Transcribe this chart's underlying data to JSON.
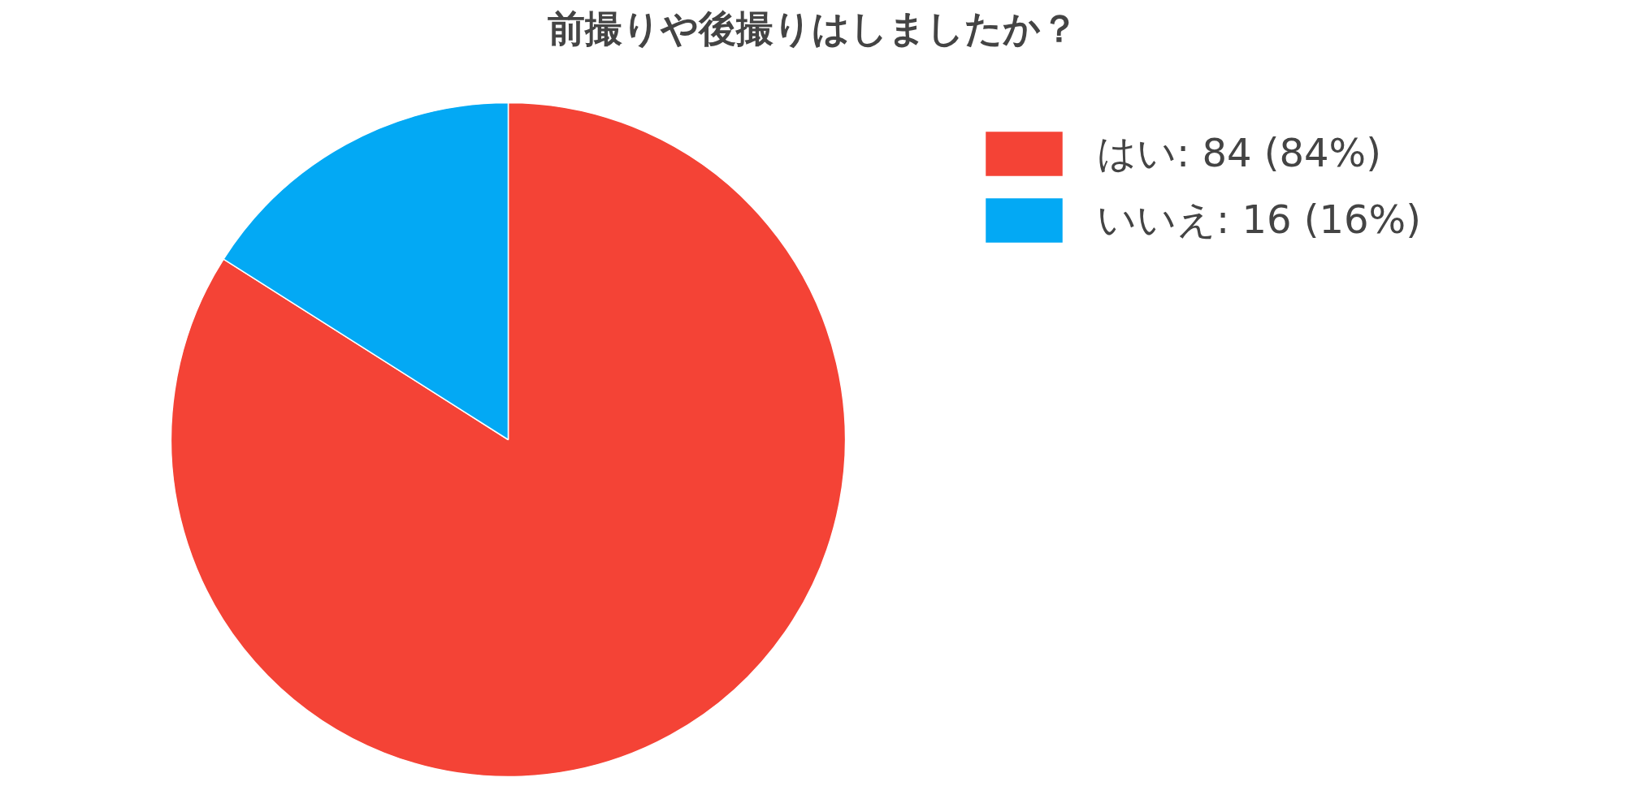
{
  "chart_data": {
    "type": "pie",
    "title": "前撮りや後撮りはしましたか？",
    "categories": [
      "はい",
      "いいえ"
    ],
    "values": [
      84,
      16
    ],
    "value_labels": [
      "84 (84%)",
      "16 (16%)"
    ],
    "colors": [
      "#f44336",
      "#03a9f4"
    ],
    "legend": "right"
  }
}
